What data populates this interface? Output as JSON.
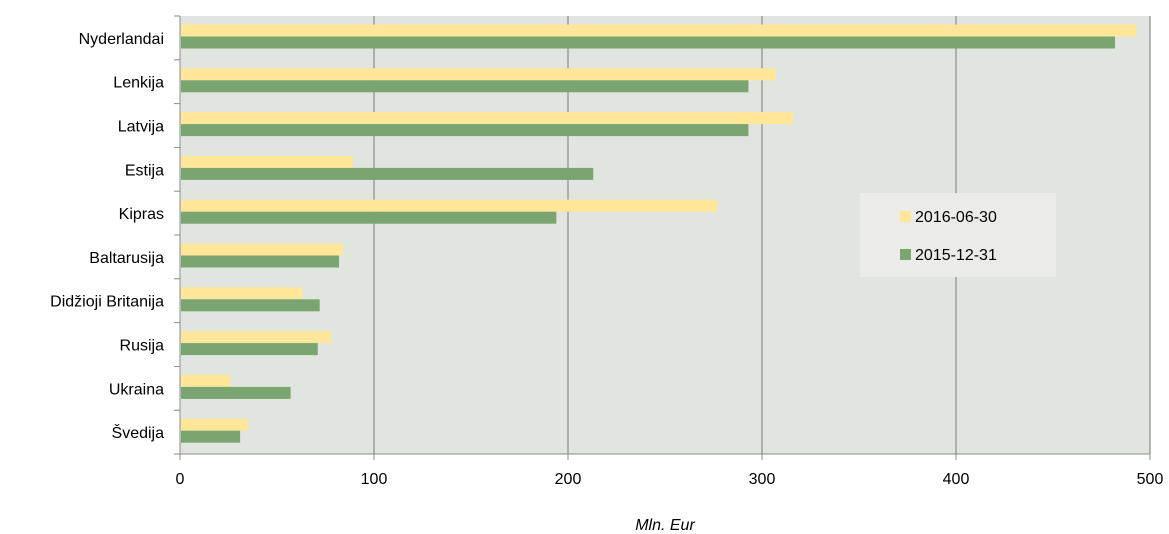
{
  "chart_data": {
    "type": "bar",
    "orientation": "horizontal",
    "categories": [
      "Nyderlandai",
      "Lenkija",
      "Latvija",
      "Estija",
      "Kipras",
      "Baltarusija",
      "Didžioji Britanija",
      "Rusija",
      "Ukraina",
      "Švedija"
    ],
    "series": [
      {
        "name": "2016-06-30",
        "color": "#ffe699",
        "values": [
          493,
          307,
          316,
          89,
          277,
          84,
          63,
          78,
          26,
          35
        ]
      },
      {
        "name": "2015-12-31",
        "color": "#7aa570",
        "values": [
          482,
          293,
          293,
          213,
          194,
          82,
          72,
          71,
          57,
          31
        ]
      }
    ],
    "xlabel": "Mln. Eur",
    "ylabel": "",
    "title": "",
    "xlim": [
      0,
      500
    ],
    "xticks": [
      0,
      100,
      200,
      300,
      400,
      500
    ],
    "grid": "vertical",
    "legend_position": "right",
    "plot_background": "#e1e5e0"
  }
}
